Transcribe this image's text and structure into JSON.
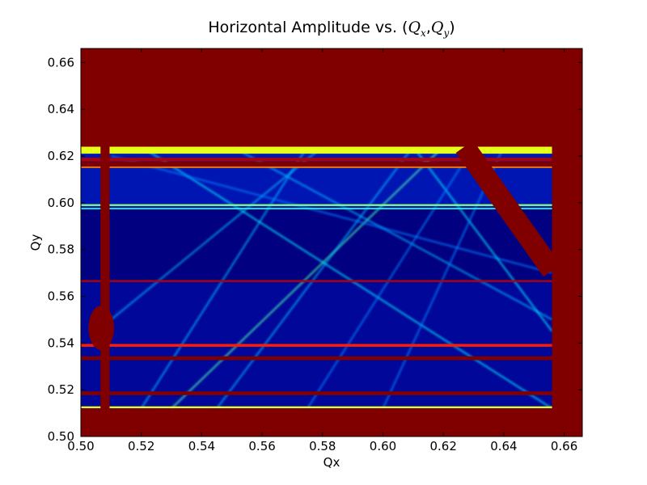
{
  "chart_data": {
    "type": "heatmap",
    "title": {
      "prefix": "Horizontal Amplitude vs. (",
      "q1": "Q",
      "s1": "x",
      "comma": ",",
      "q2": "Q",
      "s2": "y",
      "suffix": ")"
    },
    "xlabel": "Qx",
    "ylabel": "Qy",
    "xlim": [
      0.5,
      0.666
    ],
    "ylim": [
      0.5,
      0.666
    ],
    "xticks": [
      0.5,
      0.52,
      0.54,
      0.56,
      0.58,
      0.6,
      0.62,
      0.64,
      0.66
    ],
    "yticks": [
      0.5,
      0.52,
      0.54,
      0.56,
      0.58,
      0.6,
      0.62,
      0.64,
      0.66
    ],
    "xtick_labels": [
      "0.50",
      "0.52",
      "0.54",
      "0.56",
      "0.58",
      "0.60",
      "0.62",
      "0.64",
      "0.66"
    ],
    "ytick_labels": [
      "0.50",
      "0.52",
      "0.54",
      "0.56",
      "0.58",
      "0.60",
      "0.62",
      "0.64",
      "0.66"
    ],
    "colormap": "jet",
    "colors": {
      "saturated": "#800000",
      "low": "#000080",
      "mid": "#0040ff",
      "high": "#00ffff"
    },
    "scan_region": {
      "qx": [
        0.5,
        0.656
      ],
      "qy": [
        0.512,
        0.624
      ]
    },
    "horizontal_resonances": [
      {
        "qy": 0.623,
        "intensity": 0.6,
        "width": 0.004
      },
      {
        "qy": 0.6185,
        "intensity": 0.95,
        "width": 0.0015
      },
      {
        "qy": 0.6155,
        "intensity": 0.75,
        "width": 0.0012
      },
      {
        "qy": 0.599,
        "intensity": 0.5,
        "width": 0.0008
      },
      {
        "qy": 0.5975,
        "intensity": 0.4,
        "width": 0.0006
      },
      {
        "qy": 0.5665,
        "intensity": 0.95,
        "width": 0.0008
      },
      {
        "qy": 0.539,
        "intensity": 0.85,
        "width": 0.0012
      },
      {
        "qy": 0.5335,
        "intensity": 1.0,
        "width": 0.0016
      },
      {
        "qy": 0.5185,
        "intensity": 1.0,
        "width": 0.0016
      },
      {
        "qy": 0.5125,
        "intensity": 0.6,
        "width": 0.0008
      }
    ],
    "diagonal_resonances": [
      {
        "from": [
          0.53,
          0.512
        ],
        "to": [
          0.62,
          0.624
        ],
        "intensity": 0.45
      },
      {
        "from": [
          0.52,
          0.512
        ],
        "to": [
          0.575,
          0.624
        ],
        "intensity": 0.3
      },
      {
        "from": [
          0.545,
          0.512
        ],
        "to": [
          0.61,
          0.624
        ],
        "intensity": 0.3
      },
      {
        "from": [
          0.51,
          0.55
        ],
        "to": [
          0.58,
          0.624
        ],
        "intensity": 0.3
      },
      {
        "from": [
          0.52,
          0.624
        ],
        "to": [
          0.656,
          0.512
        ],
        "intensity": 0.35
      },
      {
        "from": [
          0.55,
          0.624
        ],
        "to": [
          0.656,
          0.55
        ],
        "intensity": 0.3
      },
      {
        "from": [
          0.51,
          0.62
        ],
        "to": [
          0.656,
          0.57
        ],
        "intensity": 0.25
      },
      {
        "from": [
          0.61,
          0.624
        ],
        "to": [
          0.656,
          0.545
        ],
        "intensity": 0.35
      },
      {
        "from": [
          0.6,
          0.512
        ],
        "to": [
          0.64,
          0.624
        ],
        "intensity": 0.25
      },
      {
        "from": [
          0.575,
          0.512
        ],
        "to": [
          0.63,
          0.624
        ],
        "intensity": 0.25
      }
    ],
    "saturated_bands": [
      {
        "type": "vertical",
        "qx": [
          0.5065,
          0.5095
        ],
        "qy": [
          0.512,
          0.624
        ]
      },
      {
        "type": "blob",
        "qx": [
          0.5025,
          0.511
        ],
        "qy": [
          0.537,
          0.556
        ]
      },
      {
        "type": "diagonal",
        "from": [
          0.627,
          0.624
        ],
        "to": [
          0.656,
          0.571
        ],
        "width": 0.0035
      },
      {
        "type": "band",
        "qx": [
          0.5,
          0.656
        ],
        "qy": [
          0.6155,
          0.6175
        ]
      }
    ]
  }
}
